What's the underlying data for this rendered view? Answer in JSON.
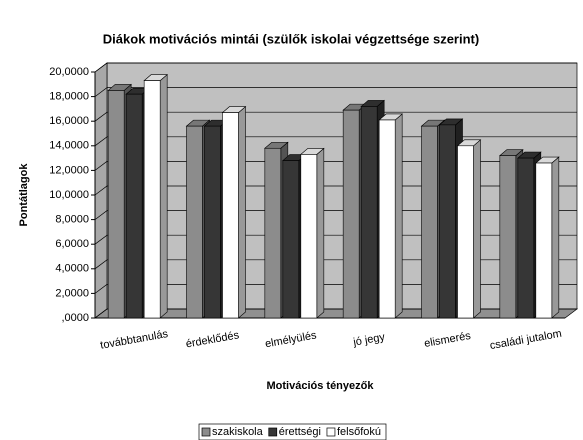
{
  "chart_data": {
    "type": "bar3d",
    "title": "Diákok motivációs mintái (szülők iskolai végzettsége szerint)",
    "y_label": "Pontátlagok",
    "x_label": "Motivációs tényezők",
    "categories": [
      "továbbtanulás",
      "érdeklődés",
      "elmélyülés",
      "jó jegy",
      "elismerés",
      "családi jutalom"
    ],
    "series": [
      {
        "name": "szakiskola",
        "color": "#8c8c8c",
        "values": [
          18.5,
          15.6,
          13.8,
          16.9,
          15.6,
          13.2
        ]
      },
      {
        "name": "érettségi",
        "color": "#363636",
        "values": [
          18.2,
          15.6,
          12.8,
          17.2,
          15.7,
          13.0
        ]
      },
      {
        "name": "felsőfokú",
        "color": "#ffffff",
        "values": [
          19.3,
          16.7,
          13.3,
          16.1,
          14.0,
          12.6
        ]
      }
    ],
    "ylim": [
      0,
      20
    ],
    "yticks": [
      {
        "value": 0,
        "label": ",0000"
      },
      {
        "value": 2,
        "label": "2,0000"
      },
      {
        "value": 4,
        "label": "4,0000"
      },
      {
        "value": 6,
        "label": "6,0000"
      },
      {
        "value": 8,
        "label": "8,0000"
      },
      {
        "value": 10,
        "label": "10,0000"
      },
      {
        "value": 12,
        "label": "12,0000"
      },
      {
        "value": 14,
        "label": "14,0000"
      },
      {
        "value": 16,
        "label": "16,0000"
      },
      {
        "value": 18,
        "label": "18,0000"
      },
      {
        "value": 20,
        "label": "20,0000"
      }
    ],
    "grid": true,
    "legend": "bottom"
  }
}
